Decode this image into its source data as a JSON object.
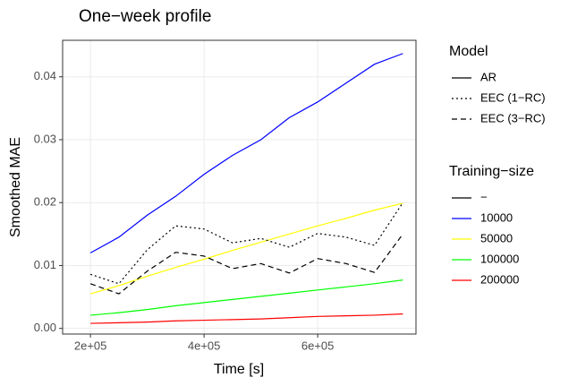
{
  "chart_data": {
    "type": "line",
    "title": "One−week profile",
    "x_label": "Time [s]",
    "y_label": "Smoothed MAE",
    "x": [
      200000,
      250000,
      300000,
      350000,
      400000,
      450000,
      500000,
      550000,
      600000,
      650000,
      700000,
      750000
    ],
    "xlim": [
      151000,
      773000
    ],
    "ylim": [
      -0.0009,
      0.0458
    ],
    "xticks": [
      {
        "value": 200000,
        "label": "2e+05"
      },
      {
        "value": 400000,
        "label": "4e+05"
      },
      {
        "value": 600000,
        "label": "6e+05"
      }
    ],
    "yticks": [
      {
        "value": 0,
        "label": "0.00"
      },
      0.01,
      0.02,
      0.03,
      0.04
    ],
    "grid": true,
    "series": [
      {
        "color": "#0000ff",
        "linetype": "solid",
        "values": [
          0.012,
          0.0145,
          0.018,
          0.021,
          0.0245,
          0.0275,
          0.03,
          0.0335,
          0.036,
          0.039,
          0.042,
          0.0437
        ]
      },
      {
        "color": "#ffff00",
        "linetype": "solid",
        "values": [
          0.0055,
          0.0068,
          0.0083,
          0.0097,
          0.011,
          0.0124,
          0.0137,
          0.015,
          0.0163,
          0.0175,
          0.0188,
          0.0199
        ]
      },
      {
        "color": "#00ff00",
        "linetype": "solid",
        "values": [
          0.0021,
          0.0025,
          0.003,
          0.0036,
          0.0041,
          0.0046,
          0.0051,
          0.0056,
          0.0061,
          0.0066,
          0.0071,
          0.0077
        ]
      },
      {
        "color": "#ff0000",
        "linetype": "solid",
        "values": [
          0.0008,
          0.0009,
          0.001,
          0.0012,
          0.0013,
          0.0014,
          0.0015,
          0.0017,
          0.0019,
          0.002,
          0.0021,
          0.0023
        ]
      },
      {
        "color": "#000000",
        "linetype": "dotted",
        "values": [
          0.0086,
          0.0071,
          0.0125,
          0.0163,
          0.0158,
          0.0136,
          0.0143,
          0.0129,
          0.0151,
          0.0145,
          0.0132,
          0.02
        ]
      },
      {
        "color": "#000000",
        "linetype": "dashed",
        "values": [
          0.0071,
          0.0055,
          0.0091,
          0.0121,
          0.0115,
          0.0095,
          0.0103,
          0.0088,
          0.0111,
          0.0103,
          0.0089,
          0.015
        ]
      }
    ],
    "legends": [
      {
        "title": "Model",
        "entries": [
          {
            "label": "AR",
            "linetype": "solid",
            "color": "#000000"
          },
          {
            "label": "EEC (1−RC)",
            "linetype": "dotted",
            "color": "#000000"
          },
          {
            "label": "EEC (3−RC)",
            "linetype": "dashed",
            "color": "#000000"
          }
        ]
      },
      {
        "title": "Training−size",
        "entries": [
          {
            "label": "−",
            "linetype": "solid",
            "color": "#000000"
          },
          {
            "label": "10000",
            "linetype": "solid",
            "color": "#0000ff"
          },
          {
            "label": "50000",
            "linetype": "solid",
            "color": "#ffff00"
          },
          {
            "label": "100000",
            "linetype": "solid",
            "color": "#00ff00"
          },
          {
            "label": "200000",
            "linetype": "solid",
            "color": "#ff0000"
          }
        ]
      }
    ]
  }
}
